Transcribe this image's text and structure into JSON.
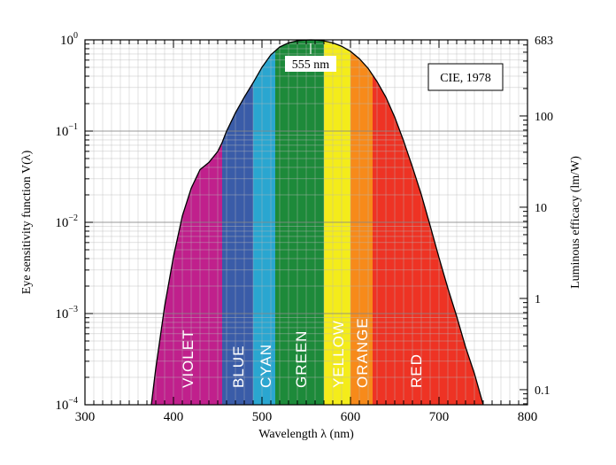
{
  "chart_data": {
    "type": "area",
    "title": "",
    "xlabel": "Wavelength λ (nm)",
    "ylabel": "Eye sensitivity function V(λ)",
    "ylabel_right": "Luminous efficacy (lm/W)",
    "xlim": [
      300,
      800
    ],
    "ylim": [
      0.0001,
      1
    ],
    "yscale": "log",
    "grid": true,
    "x_ticks": [
      {
        "value": 300,
        "label": "300"
      },
      {
        "value": 400,
        "label": "400"
      },
      {
        "value": 500,
        "label": "500"
      },
      {
        "value": 600,
        "label": "600"
      },
      {
        "value": 700,
        "label": "700"
      },
      {
        "value": 800,
        "label": "800"
      }
    ],
    "y_ticks": [
      {
        "value": 1,
        "base": "10",
        "exp": "0"
      },
      {
        "value": 0.1,
        "base": "10",
        "exp": "−1"
      },
      {
        "value": 0.01,
        "base": "10",
        "exp": "−2"
      },
      {
        "value": 0.001,
        "base": "10",
        "exp": "−3"
      },
      {
        "value": 0.0001,
        "base": "10",
        "exp": "−4"
      }
    ],
    "right_ticks": [
      {
        "value": 683,
        "label": "683"
      },
      {
        "value": 100,
        "label": "100"
      },
      {
        "value": 10,
        "label": "10"
      },
      {
        "value": 1,
        "label": "1"
      },
      {
        "value": 0.1,
        "label": "0.1"
      }
    ],
    "right_scale_factor": 683,
    "curve": {
      "x": [
        375,
        380,
        390,
        400,
        410,
        420,
        430,
        440,
        450,
        455,
        460,
        470,
        480,
        490,
        500,
        510,
        520,
        530,
        540,
        550,
        555,
        560,
        570,
        580,
        590,
        600,
        610,
        620,
        630,
        640,
        650,
        660,
        670,
        680,
        690,
        700,
        710,
        720,
        730,
        740,
        750
      ],
      "y": [
        0.0001,
        0.00025,
        0.0012,
        0.0042,
        0.0117,
        0.0236,
        0.0378,
        0.0453,
        0.0598,
        0.075,
        0.0998,
        0.1584,
        0.2353,
        0.3389,
        0.5007,
        0.6857,
        0.8341,
        0.9284,
        0.9783,
        0.9974,
        1.0,
        0.9971,
        0.9717,
        0.9267,
        0.8512,
        0.7487,
        0.6227,
        0.4865,
        0.3489,
        0.2357,
        0.1421,
        0.0781,
        0.0404,
        0.0202,
        0.0092,
        0.0041,
        0.0019,
        0.00093,
        0.00043,
        0.00022,
        0.0001
      ]
    },
    "bands": [
      {
        "name": "VIOLET",
        "from": 375,
        "to": 455,
        "color": "#c0208c"
      },
      {
        "name": "BLUE",
        "from": 455,
        "to": 490,
        "color": "#3a5ca8"
      },
      {
        "name": "CYAN",
        "from": 490,
        "to": 515,
        "color": "#2aa6d0"
      },
      {
        "name": "GREEN",
        "from": 515,
        "to": 570,
        "color": "#1d8a3a"
      },
      {
        "name": "YELLOW",
        "from": 570,
        "to": 600,
        "color": "#f4ec1a"
      },
      {
        "name": "ORANGE",
        "from": 600,
        "to": 625,
        "color": "#f78a1a"
      },
      {
        "name": "RED",
        "from": 625,
        "to": 750,
        "color": "#ee3324"
      }
    ],
    "band_labels": [
      {
        "text": "VIOLET",
        "x": 415
      },
      {
        "text": "BLUE",
        "x": 472
      },
      {
        "text": "CYAN",
        "x": 503
      },
      {
        "text": "GREEN",
        "x": 543
      },
      {
        "text": "YELLOW",
        "x": 585
      },
      {
        "text": "ORANGE",
        "x": 612
      },
      {
        "text": "RED",
        "x": 673
      }
    ],
    "annotations": [
      {
        "text": "555 nm",
        "x": 555
      },
      {
        "text": "CIE, 1978",
        "boxed": true,
        "placement": "top-right"
      }
    ]
  }
}
